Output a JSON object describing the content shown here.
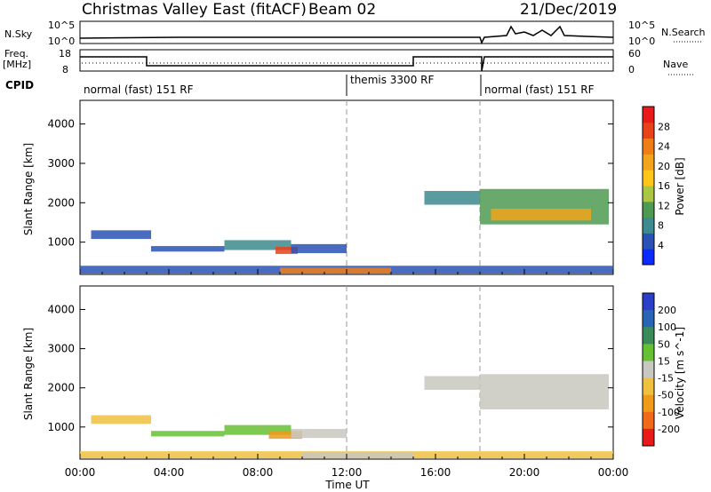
{
  "header": {
    "title": "Christmas Valley East (fitACF)",
    "beam": "Beam 02",
    "date": "21/Dec/2019"
  },
  "top_panels": {
    "nsky_label": "N.Sky",
    "nsky_ticks": [
      "10^5",
      "10^0"
    ],
    "nsearch_label": "N.Search",
    "nsearch_ticks": [
      "10^5",
      "10^0"
    ],
    "freq_label_1": "Freq.",
    "freq_label_2": "[MHz]",
    "freq_ticks": [
      "18",
      "8"
    ],
    "nave_label": "Nave",
    "nave_ticks": [
      "60",
      "0"
    ],
    "cpid_label": "CPID",
    "cpid_segments": [
      "normal (fast) 151 RF",
      "themis 3300 RF",
      "normal (fast) 151 RF"
    ],
    "cpid_start_hours": [
      0,
      12,
      18
    ]
  },
  "colorbars": {
    "power": {
      "label": "Power [dB]",
      "ticks": [
        "4",
        "8",
        "12",
        "16",
        "20",
        "24",
        "28"
      ],
      "colors": [
        "#0a2aff",
        "#2a52b5",
        "#3d8a8f",
        "#4f9a52",
        "#a9c742",
        "#ffc61a",
        "#f2a41a",
        "#f07e17",
        "#e8421a",
        "#e81a1a"
      ]
    },
    "velocity": {
      "label": "Velocity [m s^-1]",
      "ticks": [
        "200",
        "100",
        "50",
        "15",
        "-15",
        "-50",
        "-100",
        "-200"
      ],
      "colors": [
        "#2a3fc7",
        "#2a64b5",
        "#3a8a5a",
        "#66c033",
        "#c8c8c0",
        "#f0c040",
        "#f09a1a",
        "#f06a1a",
        "#e81a1a"
      ]
    }
  },
  "chart_data": [
    {
      "type": "heatmap",
      "name": "power",
      "ylabel": "Slant Range [km]",
      "xlim": [
        0,
        24
      ],
      "ylim": [
        180,
        4600
      ],
      "yticks": [
        "1000",
        "2000",
        "3000",
        "4000"
      ],
      "regions": [
        {
          "t0": 0.5,
          "t1": 3.2,
          "r0": 1080,
          "r1": 1300,
          "color": "#2a52b5"
        },
        {
          "t0": 3.2,
          "t1": 6.5,
          "r0": 760,
          "r1": 900,
          "color": "#2a52b5"
        },
        {
          "t0": 6.5,
          "t1": 9.5,
          "r0": 800,
          "r1": 1050,
          "color": "#3d8a8f"
        },
        {
          "t0": 8.8,
          "t1": 9.8,
          "r0": 700,
          "r1": 880,
          "color": "#e8421a"
        },
        {
          "t0": 9.5,
          "t1": 12.0,
          "r0": 720,
          "r1": 950,
          "color": "#2a52b5"
        },
        {
          "t0": 15.5,
          "t1": 18.0,
          "r0": 1950,
          "r1": 2300,
          "color": "#3d8a8f"
        },
        {
          "t0": 18.0,
          "t1": 23.8,
          "r0": 1450,
          "r1": 2350,
          "color": "#4f9a52"
        },
        {
          "t0": 18.5,
          "t1": 23.0,
          "r0": 1550,
          "r1": 1850,
          "color": "#f2a41a"
        },
        {
          "t0": 0.0,
          "t1": 24.0,
          "r0": 200,
          "r1": 400,
          "color": "#2a52b5"
        },
        {
          "t0": 9.0,
          "t1": 14.0,
          "r0": 200,
          "r1": 350,
          "color": "#f07e17"
        }
      ]
    },
    {
      "type": "heatmap",
      "name": "velocity",
      "ylabel": "Slant Range [km]",
      "xlabel": "Time UT",
      "xlim": [
        0,
        24
      ],
      "ylim": [
        180,
        4600
      ],
      "yticks": [
        "1000",
        "2000",
        "3000",
        "4000"
      ],
      "xticks": [
        "00:00",
        "04:00",
        "08:00",
        "12:00",
        "16:00",
        "20:00",
        "00:00"
      ],
      "regions": [
        {
          "t0": 0.5,
          "t1": 3.2,
          "r0": 1080,
          "r1": 1300,
          "color": "#f0c040"
        },
        {
          "t0": 3.2,
          "t1": 6.5,
          "r0": 760,
          "r1": 900,
          "color": "#66c033"
        },
        {
          "t0": 6.5,
          "t1": 9.5,
          "r0": 800,
          "r1": 1050,
          "color": "#66c033"
        },
        {
          "t0": 8.5,
          "t1": 10.0,
          "r0": 700,
          "r1": 900,
          "color": "#f09a1a"
        },
        {
          "t0": 9.5,
          "t1": 12.0,
          "r0": 720,
          "r1": 950,
          "color": "#c8c8c0"
        },
        {
          "t0": 15.5,
          "t1": 18.0,
          "r0": 1950,
          "r1": 2300,
          "color": "#c8c8c0"
        },
        {
          "t0": 18.0,
          "t1": 23.8,
          "r0": 1450,
          "r1": 2350,
          "color": "#c8c8c0"
        },
        {
          "t0": 0.0,
          "t1": 24.0,
          "r0": 200,
          "r1": 380,
          "color": "#f0c040"
        },
        {
          "t0": 10.0,
          "t1": 15.0,
          "r0": 200,
          "r1": 350,
          "color": "#c8c8c0"
        }
      ]
    }
  ]
}
